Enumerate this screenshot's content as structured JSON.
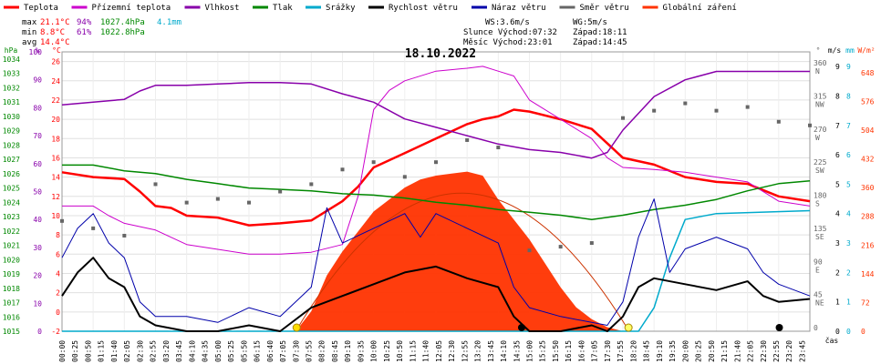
{
  "legend": [
    {
      "label": "Teplota",
      "color": "#ff0000"
    },
    {
      "label": "Přízemní teplota",
      "color": "#cc00cc"
    },
    {
      "label": "Vlhkost",
      "color": "#8800aa"
    },
    {
      "label": "Tlak",
      "color": "#008800"
    },
    {
      "label": "Srážky",
      "color": "#00aacc"
    },
    {
      "label": "Rychlost větru",
      "color": "#000000"
    },
    {
      "label": "Náraz větru",
      "color": "#0000aa"
    },
    {
      "label": "Směr větru",
      "color": "#666666"
    },
    {
      "label": "Globální záření",
      "color": "#ff3300"
    }
  ],
  "stats": {
    "max": {
      "label": "max",
      "temp": "21.1°C",
      "hum": "94%",
      "press": "1027.4hPa",
      "rain": "4.1mm"
    },
    "min": {
      "label": "min",
      "temp": "8.8°C",
      "hum": "61%",
      "press": "1022.8hPa"
    },
    "avg": {
      "label": "avg",
      "temp": "14.4°C"
    }
  },
  "wind_info": {
    "ws": "WS:3.6m/s",
    "wg": "WG:5m/s"
  },
  "sun_info": {
    "sunrise": "Slunce Východ:07:32",
    "sunset": "Západ:18:11"
  },
  "moon_info": {
    "rise": "Měsíc  Východ:23:01",
    "set": "Západ:14:45"
  },
  "date": "18.10.2022",
  "axes": {
    "hpa": {
      "unit": "hPa",
      "ticks": [
        "1015",
        "1016",
        "1017",
        "1018",
        "1019",
        "1020",
        "1021",
        "1022",
        "1023",
        "1024",
        "1025",
        "1026",
        "1027",
        "1028",
        "1029",
        "1030",
        "1031",
        "1032",
        "1033",
        "1034"
      ]
    },
    "pct": {
      "unit": "%",
      "ticks": [
        "0",
        "10",
        "20",
        "30",
        "40",
        "50",
        "60",
        "70",
        "80",
        "90",
        "100"
      ]
    },
    "temp": {
      "unit": "°C",
      "ticks": [
        "-2",
        "0",
        "2",
        "4",
        "6",
        "8",
        "10",
        "12",
        "14",
        "16",
        "18",
        "20",
        "22",
        "24",
        "26"
      ]
    },
    "dir": {
      "unit": "°",
      "ticks": [
        "0",
        "45",
        "90",
        "135",
        "180",
        "225",
        "270",
        "315",
        "360"
      ],
      "names": [
        "",
        "NE",
        "E",
        "SE",
        "S",
        "SW",
        "W",
        "NW",
        "N"
      ]
    },
    "ms": {
      "unit": "m/s",
      "ticks": [
        "0",
        "1",
        "2",
        "3",
        "4",
        "5",
        "6",
        "7",
        "8",
        "9"
      ]
    },
    "mm": {
      "unit": "mm",
      "ticks": [
        "0",
        "1",
        "2",
        "3",
        "4",
        "5",
        "6",
        "7",
        "8",
        "9"
      ]
    },
    "wm2": {
      "unit": "W/m²",
      "ticks": [
        "0",
        "72",
        "144",
        "216",
        "288",
        "360",
        "432",
        "504",
        "576",
        "648"
      ]
    },
    "time": {
      "unit": "čas",
      "ticks": [
        "00:00",
        "00:25",
        "00:50",
        "01:15",
        "01:40",
        "02:05",
        "02:30",
        "02:55",
        "03:20",
        "03:45",
        "04:10",
        "04:35",
        "05:00",
        "05:25",
        "05:50",
        "06:15",
        "06:40",
        "07:05",
        "07:30",
        "07:55",
        "08:20",
        "08:45",
        "09:10",
        "09:35",
        "10:00",
        "10:25",
        "10:50",
        "11:15",
        "11:40",
        "12:05",
        "12:30",
        "12:55",
        "13:20",
        "13:45",
        "14:10",
        "14:35",
        "15:00",
        "15:25",
        "15:50",
        "16:15",
        "16:40",
        "17:05",
        "17:30",
        "17:55",
        "18:20",
        "18:45",
        "19:10",
        "19:35",
        "20:00",
        "20:25",
        "20:50",
        "21:15",
        "21:40",
        "22:05",
        "22:30",
        "22:55",
        "23:20",
        "23:45"
      ]
    }
  },
  "chart_data": {
    "type": "line",
    "title": "18.10.2022",
    "xlabel": "čas",
    "x_range_hours": [
      0,
      24
    ],
    "series": [
      {
        "name": "Teplota",
        "unit": "°C",
        "points": [
          [
            0,
            14.5
          ],
          [
            1,
            14
          ],
          [
            2,
            13.8
          ],
          [
            2.5,
            12.5
          ],
          [
            3,
            11
          ],
          [
            3.5,
            10.8
          ],
          [
            4,
            10
          ],
          [
            5,
            9.8
          ],
          [
            6,
            9
          ],
          [
            7,
            9.2
          ],
          [
            8,
            9.5
          ],
          [
            8.5,
            10.5
          ],
          [
            9,
            11.5
          ],
          [
            9.5,
            13
          ],
          [
            10,
            15
          ],
          [
            11,
            16.5
          ],
          [
            12,
            18
          ],
          [
            13,
            19.5
          ],
          [
            13.5,
            20
          ],
          [
            14,
            20.3
          ],
          [
            14.5,
            21
          ],
          [
            15,
            20.8
          ],
          [
            16,
            20
          ],
          [
            17,
            19
          ],
          [
            17.5,
            17.5
          ],
          [
            18,
            16
          ],
          [
            19,
            15.3
          ],
          [
            20,
            14
          ],
          [
            21,
            13.5
          ],
          [
            22,
            13.3
          ],
          [
            23,
            12
          ],
          [
            24,
            11.5
          ]
        ]
      },
      {
        "name": "Přízemní teplota",
        "unit": "°C",
        "points": [
          [
            0,
            11
          ],
          [
            1,
            11
          ],
          [
            1.5,
            10
          ],
          [
            2,
            9.2
          ],
          [
            3,
            8.5
          ],
          [
            4,
            7
          ],
          [
            5,
            6.5
          ],
          [
            6,
            6
          ],
          [
            7,
            6
          ],
          [
            8,
            6.2
          ],
          [
            9,
            7
          ],
          [
            9.5,
            12
          ],
          [
            10,
            21
          ],
          [
            10.5,
            23
          ],
          [
            11,
            24
          ],
          [
            12,
            25
          ],
          [
            13,
            25.3
          ],
          [
            13.5,
            25.5
          ],
          [
            14,
            25
          ],
          [
            14.5,
            24.5
          ],
          [
            15,
            22
          ],
          [
            16,
            20
          ],
          [
            17,
            18
          ],
          [
            17.5,
            16
          ],
          [
            18,
            15
          ],
          [
            19,
            14.8
          ],
          [
            20,
            14.5
          ],
          [
            21,
            14
          ],
          [
            22,
            13.5
          ],
          [
            23,
            11.5
          ],
          [
            24,
            11
          ]
        ]
      },
      {
        "name": "Vlhkost",
        "unit": "%",
        "points": [
          [
            0,
            81
          ],
          [
            1,
            82
          ],
          [
            2,
            83
          ],
          [
            2.5,
            86
          ],
          [
            3,
            88
          ],
          [
            4,
            88
          ],
          [
            5,
            88.5
          ],
          [
            6,
            89
          ],
          [
            7,
            89
          ],
          [
            8,
            88.5
          ],
          [
            9,
            85
          ],
          [
            10,
            82
          ],
          [
            11,
            76
          ],
          [
            12,
            73
          ],
          [
            13,
            70
          ],
          [
            14,
            67
          ],
          [
            15,
            65
          ],
          [
            16,
            64
          ],
          [
            17,
            62
          ],
          [
            17.5,
            64
          ],
          [
            18,
            72
          ],
          [
            19,
            84
          ],
          [
            20,
            90
          ],
          [
            21,
            93
          ],
          [
            22,
            93
          ],
          [
            23,
            93
          ],
          [
            24,
            93
          ]
        ]
      },
      {
        "name": "Tlak",
        "unit": "hPa",
        "points": [
          [
            0,
            1026.6
          ],
          [
            1,
            1026.6
          ],
          [
            2,
            1026.2
          ],
          [
            3,
            1026.0
          ],
          [
            4,
            1025.6
          ],
          [
            5,
            1025.3
          ],
          [
            6,
            1025.0
          ],
          [
            7,
            1024.9
          ],
          [
            8,
            1024.8
          ],
          [
            9,
            1024.6
          ],
          [
            10,
            1024.5
          ],
          [
            11,
            1024.3
          ],
          [
            12,
            1024.0
          ],
          [
            13,
            1023.8
          ],
          [
            14,
            1023.5
          ],
          [
            15,
            1023.3
          ],
          [
            16,
            1023.1
          ],
          [
            17,
            1022.8
          ],
          [
            18,
            1023.1
          ],
          [
            19,
            1023.5
          ],
          [
            20,
            1023.8
          ],
          [
            21,
            1024.2
          ],
          [
            22,
            1024.8
          ],
          [
            23,
            1025.3
          ],
          [
            24,
            1025.5
          ]
        ]
      },
      {
        "name": "Srážky",
        "unit": "mm",
        "points": [
          [
            0,
            0
          ],
          [
            18.5,
            0
          ],
          [
            19,
            0.8
          ],
          [
            19.5,
            2.5
          ],
          [
            20,
            3.8
          ],
          [
            21,
            4.0
          ],
          [
            24,
            4.1
          ]
        ]
      },
      {
        "name": "Rychlost větru",
        "unit": "m/s",
        "points": [
          [
            0,
            1.2
          ],
          [
            0.5,
            2
          ],
          [
            1,
            2.5
          ],
          [
            1.5,
            1.8
          ],
          [
            2,
            1.5
          ],
          [
            2.5,
            0.5
          ],
          [
            3,
            0.2
          ],
          [
            4,
            0
          ],
          [
            5,
            0
          ],
          [
            6,
            0.2
          ],
          [
            7,
            0
          ],
          [
            8,
            0.8
          ],
          [
            9,
            1.2
          ],
          [
            10,
            1.6
          ],
          [
            11,
            2.0
          ],
          [
            12,
            2.2
          ],
          [
            13,
            1.8
          ],
          [
            14,
            1.5
          ],
          [
            14.5,
            0.5
          ],
          [
            15,
            0
          ],
          [
            16,
            0
          ],
          [
            17,
            0.2
          ],
          [
            17.5,
            0
          ],
          [
            18,
            0.5
          ],
          [
            18.5,
            1.5
          ],
          [
            19,
            1.8
          ],
          [
            20,
            1.6
          ],
          [
            21,
            1.4
          ],
          [
            22,
            1.7
          ],
          [
            22.5,
            1.2
          ],
          [
            23,
            1.0
          ],
          [
            24,
            1.1
          ]
        ]
      },
      {
        "name": "Náraz větru",
        "unit": "m/s",
        "points": [
          [
            0,
            2.5
          ],
          [
            0.5,
            3.5
          ],
          [
            1,
            4.0
          ],
          [
            1.5,
            3.0
          ],
          [
            2,
            2.5
          ],
          [
            2.5,
            1.0
          ],
          [
            3,
            0.5
          ],
          [
            4,
            0.5
          ],
          [
            5,
            0.3
          ],
          [
            6,
            0.8
          ],
          [
            7,
            0.5
          ],
          [
            8,
            1.5
          ],
          [
            8.5,
            4.2
          ],
          [
            9,
            3.0
          ],
          [
            10,
            3.5
          ],
          [
            11,
            4.0
          ],
          [
            11.5,
            3.2
          ],
          [
            12,
            4.0
          ],
          [
            13,
            3.5
          ],
          [
            14,
            3.0
          ],
          [
            14.5,
            1.5
          ],
          [
            15,
            0.8
          ],
          [
            16,
            0.5
          ],
          [
            17,
            0.3
          ],
          [
            17.5,
            0.2
          ],
          [
            18,
            1.0
          ],
          [
            18.5,
            3.2
          ],
          [
            19,
            4.5
          ],
          [
            19.5,
            2.0
          ],
          [
            20,
            2.8
          ],
          [
            21,
            3.2
          ],
          [
            22,
            2.8
          ],
          [
            22.5,
            2.0
          ],
          [
            23,
            1.6
          ],
          [
            24,
            1.2
          ]
        ]
      },
      {
        "name": "Globální záření",
        "unit": "W/m²",
        "points": [
          [
            7.5,
            0
          ],
          [
            8,
            50
          ],
          [
            8.5,
            140
          ],
          [
            9,
            200
          ],
          [
            9.5,
            250
          ],
          [
            10,
            300
          ],
          [
            10.5,
            330
          ],
          [
            11,
            360
          ],
          [
            11.5,
            380
          ],
          [
            12,
            390
          ],
          [
            12.5,
            395
          ],
          [
            13,
            400
          ],
          [
            13.5,
            390
          ],
          [
            14,
            330
          ],
          [
            14.5,
            280
          ],
          [
            15,
            230
          ],
          [
            15.5,
            170
          ],
          [
            16,
            110
          ],
          [
            16.5,
            60
          ],
          [
            17,
            30
          ],
          [
            17.5,
            10
          ],
          [
            18,
            0
          ]
        ]
      },
      {
        "name": "Směr větru",
        "unit": "°",
        "points": [
          [
            0,
            150
          ],
          [
            1,
            140
          ],
          [
            2,
            130
          ],
          [
            3,
            200
          ],
          [
            4,
            175
          ],
          [
            5,
            180
          ],
          [
            6,
            175
          ],
          [
            7,
            190
          ],
          [
            8,
            200
          ],
          [
            9,
            220
          ],
          [
            10,
            230
          ],
          [
            11,
            210
          ],
          [
            12,
            230
          ],
          [
            13,
            260
          ],
          [
            14,
            250
          ],
          [
            15,
            110
          ],
          [
            16,
            115
          ],
          [
            17,
            120
          ],
          [
            18,
            290
          ],
          [
            19,
            300
          ],
          [
            20,
            310
          ],
          [
            21,
            300
          ],
          [
            22,
            305
          ],
          [
            23,
            285
          ],
          [
            24,
            280
          ]
        ]
      }
    ]
  }
}
